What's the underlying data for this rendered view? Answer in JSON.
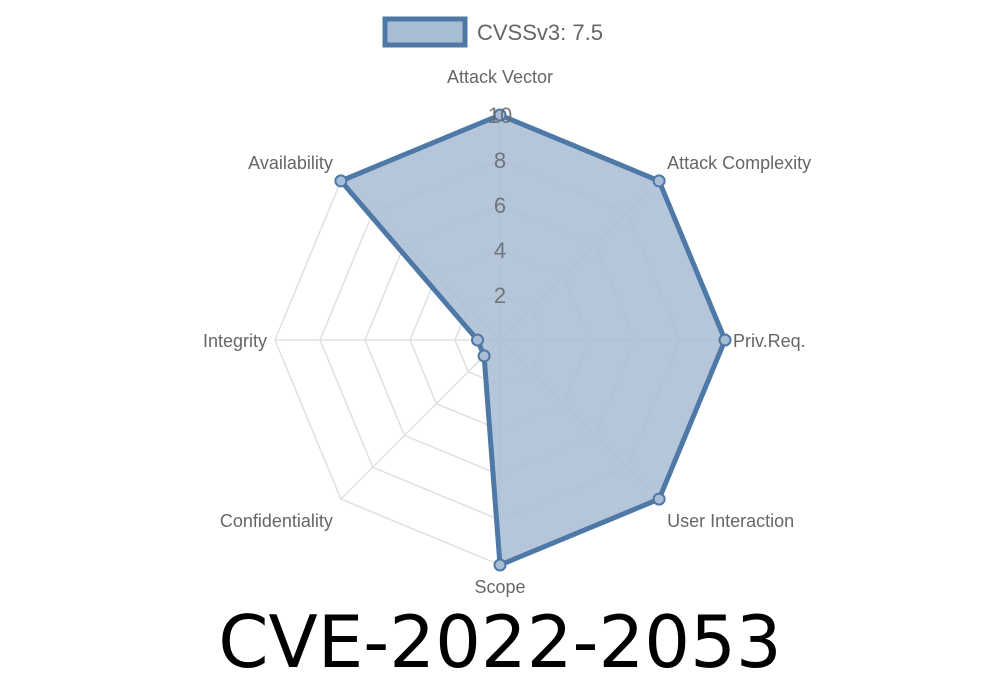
{
  "chart_data": {
    "type": "radar",
    "title": "CVE-2022-2053",
    "axes": [
      "Attack Vector",
      "Attack Complexity",
      "Priv.Req.",
      "User Interaction",
      "Scope",
      "Confidentiality",
      "Integrity",
      "Availability"
    ],
    "series": [
      {
        "name": "CVSSv3: 7.5",
        "values": [
          10,
          10,
          10,
          10,
          10,
          1,
          1,
          10
        ]
      }
    ],
    "rlim": [
      0,
      10
    ],
    "ticks": [
      "2",
      "4",
      "6",
      "8",
      "10"
    ],
    "tick_values": [
      2,
      4,
      6,
      8,
      10
    ],
    "grid": true,
    "legend_position": "top",
    "colors": {
      "line": "#4e79a7",
      "fill": "#a8bcd4",
      "grid": "#e0e0e0"
    }
  }
}
